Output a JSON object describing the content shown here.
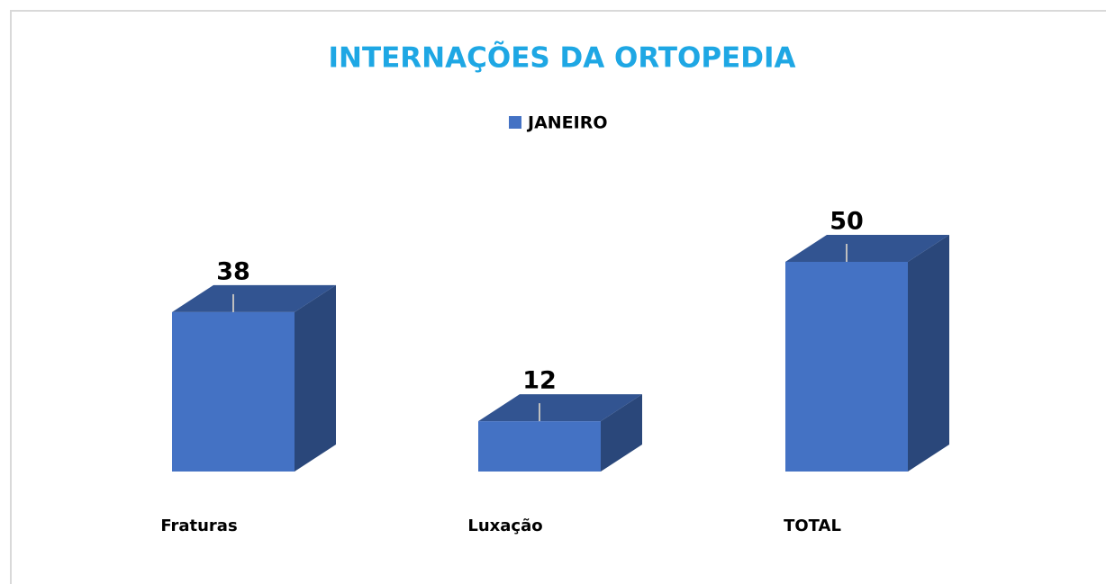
{
  "chart_data": {
    "type": "bar3d",
    "title": "INTERNAÇÕES DA ORTOPEDIA",
    "categories": [
      "Fraturas",
      "Luxação",
      "TOTAL"
    ],
    "series": [
      {
        "name": "JANEIRO",
        "color": "#4472c4",
        "values": [
          38,
          12,
          50
        ]
      }
    ],
    "legend": "top"
  }
}
